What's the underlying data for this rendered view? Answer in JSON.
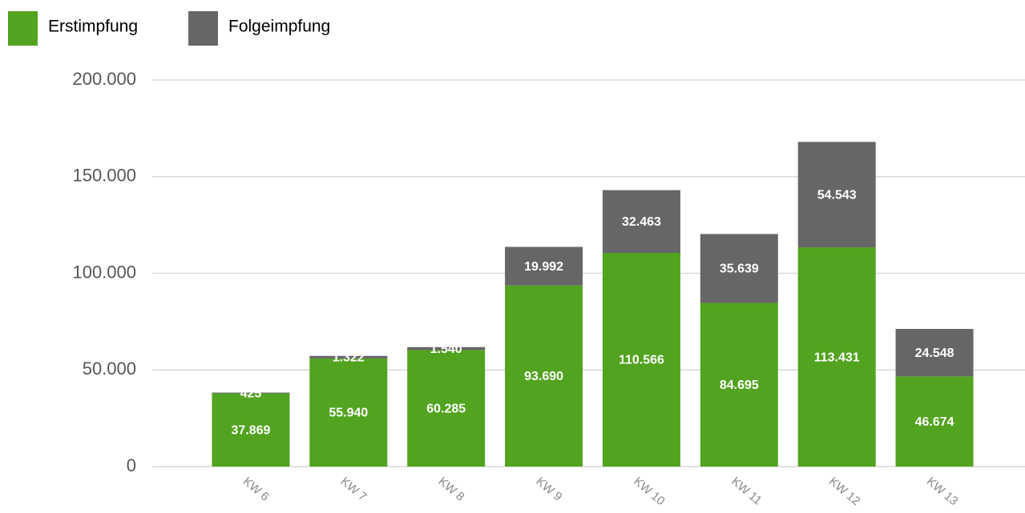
{
  "chart_data": {
    "type": "stacked_bar",
    "categories": [
      "KW 6",
      "KW 7",
      "KW 8",
      "KW 9",
      "KW 10",
      "KW 11",
      "KW 12",
      "KW 13"
    ],
    "series": [
      {
        "name": "Erstimpfung",
        "color": "#52a31f",
        "values": [
          37869,
          55940,
          60285,
          93690,
          110566,
          84695,
          113431,
          46674
        ],
        "value_labels": [
          "37.869",
          "55.940",
          "60.285",
          "93.690",
          "110.566",
          "84.695",
          "113.431",
          "46.674"
        ]
      },
      {
        "name": "Folgeimpfung",
        "color": "#666666",
        "values": [
          425,
          1322,
          1540,
          19992,
          32463,
          35639,
          54543,
          24548
        ],
        "value_labels": [
          "425",
          "1.322",
          "1.540",
          "19.992",
          "32.463",
          "35.639",
          "54.543",
          "24.548"
        ]
      }
    ],
    "ylim": [
      0,
      200000
    ],
    "yticks": [
      0,
      {
        "value": 50000,
        "label": "50.000"
      },
      {
        "value": 100000,
        "label": "100.000"
      },
      {
        "value": 150000,
        "label": "150.000"
      },
      {
        "value": 200000,
        "label": "200.000"
      }
    ],
    "grid": true,
    "legend": "top-left"
  }
}
